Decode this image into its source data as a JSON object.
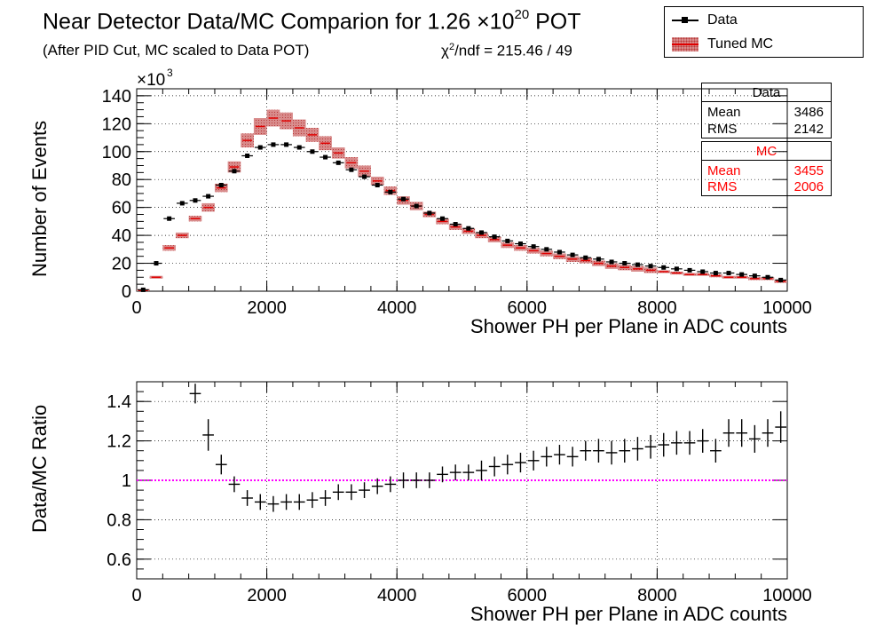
{
  "title": {
    "main": "Near Detector Data/MC Comparion for 1.26 ×10",
    "exponent": "20",
    "suffix": " POT",
    "subtitle": "(After PID Cut, MC scaled to Data POT)",
    "chi2_symbol": "χ",
    "chi2_exp": "2",
    "chi2_text": "/ndf = 215.46 / 49"
  },
  "legend": {
    "entries": [
      {
        "label": "Data",
        "color": "#000000"
      },
      {
        "label": "Tuned MC",
        "color": "#d88b8b"
      }
    ]
  },
  "stats": {
    "data": {
      "header": "Data",
      "mean_label": "Mean",
      "mean": "3486",
      "rms_label": "RMS",
      "rms": "2142"
    },
    "mc": {
      "header": "MC",
      "mean_label": "Mean",
      "mean": "3455",
      "rms_label": "RMS",
      "rms": "2006",
      "color": "#ff0000"
    }
  },
  "colors": {
    "mc_fill": "#d88b8b",
    "mc_hatch": "#b83a3a",
    "mc_line": "#e00000",
    "unity_line": "#ff00ff",
    "data": "#000000"
  },
  "chart_data": [
    {
      "type": "bar",
      "title": "Near Detector Data/MC Comparion for 1.26 ×10^20 POT",
      "xlabel": "Shower PH per Plane in ADC counts",
      "ylabel": "Number of Events",
      "y_multiplier": "×10",
      "y_multiplier_exp": "3",
      "xlim": [
        0,
        10000
      ],
      "ylim": [
        0,
        145
      ],
      "xticks": [
        0,
        2000,
        4000,
        6000,
        8000,
        10000
      ],
      "yticks": [
        0,
        20,
        40,
        60,
        80,
        100,
        120,
        140
      ],
      "grid": true,
      "legend_position": "top-right",
      "bin_width": 200,
      "x": [
        100,
        300,
        500,
        700,
        900,
        1100,
        1300,
        1500,
        1700,
        1900,
        2100,
        2300,
        2500,
        2700,
        2900,
        3100,
        3300,
        3500,
        3700,
        3900,
        4100,
        4300,
        4500,
        4700,
        4900,
        5100,
        5300,
        5500,
        5700,
        5900,
        6100,
        6300,
        6500,
        6700,
        6900,
        7100,
        7300,
        7500,
        7700,
        7900,
        8100,
        8300,
        8500,
        8700,
        8900,
        9100,
        9300,
        9500,
        9700,
        9900
      ],
      "series": [
        {
          "name": "Data",
          "values": [
            1,
            20,
            52,
            63,
            65,
            68,
            76,
            86,
            97,
            103,
            105,
            105,
            103,
            100,
            96,
            92,
            87,
            82,
            76,
            71,
            66,
            61,
            56,
            52,
            48,
            45,
            42,
            39,
            36,
            34,
            32,
            30,
            28,
            26,
            24,
            23,
            21,
            20,
            19,
            18,
            17,
            16,
            15,
            14,
            13,
            13,
            12,
            11,
            10,
            8
          ]
        },
        {
          "name": "Tuned MC",
          "values": [
            0.5,
            10,
            31,
            40,
            52,
            60,
            74,
            89,
            108,
            118,
            124,
            122,
            117,
            112,
            106,
            99,
            92,
            86,
            79,
            72,
            65,
            61,
            55,
            50,
            46,
            43,
            40,
            37,
            33,
            31,
            29,
            27,
            25,
            23,
            22,
            20,
            18,
            17,
            16,
            15,
            14,
            13,
            12,
            12,
            11,
            10,
            10,
            9,
            9,
            7
          ],
          "error_band": [
            1,
            1,
            2,
            2,
            2,
            3,
            3,
            4,
            5,
            6,
            6,
            6,
            6,
            5,
            5,
            4,
            4,
            4,
            3,
            3,
            3,
            3,
            2,
            2,
            2,
            2,
            2,
            2,
            2,
            2,
            2,
            2,
            2,
            2,
            2,
            2,
            2,
            2,
            2,
            2,
            1,
            1,
            1,
            1,
            1,
            1,
            1,
            1,
            1,
            1
          ]
        }
      ]
    },
    {
      "type": "scatter",
      "xlabel": "Shower PH per Plane in ADC counts",
      "ylabel": "Data/MC Ratio",
      "xlim": [
        0,
        10000
      ],
      "ylim": [
        0.5,
        1.5
      ],
      "xticks": [
        0,
        2000,
        4000,
        6000,
        8000,
        10000
      ],
      "yticks": [
        0.6,
        0.8,
        1,
        1.2,
        1.4
      ],
      "grid": true,
      "reference_line": 1,
      "bin_width": 200,
      "x": [
        900,
        1100,
        1300,
        1500,
        1700,
        1900,
        2100,
        2300,
        2500,
        2700,
        2900,
        3100,
        3300,
        3500,
        3700,
        3900,
        4100,
        4300,
        4500,
        4700,
        4900,
        5100,
        5300,
        5500,
        5700,
        5900,
        6100,
        6300,
        6500,
        6700,
        6900,
        7100,
        7300,
        7500,
        7700,
        7900,
        8100,
        8300,
        8500,
        8700,
        8900,
        9100,
        9300,
        9500,
        9700,
        9900
      ],
      "values": [
        1.44,
        1.23,
        1.08,
        0.98,
        0.91,
        0.89,
        0.88,
        0.89,
        0.89,
        0.9,
        0.91,
        0.94,
        0.94,
        0.95,
        0.97,
        0.98,
        1.0,
        1.0,
        1.0,
        1.03,
        1.04,
        1.04,
        1.05,
        1.07,
        1.08,
        1.09,
        1.1,
        1.12,
        1.13,
        1.12,
        1.15,
        1.15,
        1.14,
        1.15,
        1.16,
        1.17,
        1.18,
        1.19,
        1.19,
        1.2,
        1.15,
        1.24,
        1.24,
        1.21,
        1.24,
        1.27
      ],
      "errors": [
        0.05,
        0.08,
        0.05,
        0.04,
        0.04,
        0.04,
        0.04,
        0.04,
        0.04,
        0.04,
        0.04,
        0.04,
        0.04,
        0.04,
        0.04,
        0.04,
        0.04,
        0.04,
        0.04,
        0.04,
        0.04,
        0.04,
        0.05,
        0.05,
        0.05,
        0.05,
        0.05,
        0.05,
        0.05,
        0.05,
        0.05,
        0.06,
        0.06,
        0.06,
        0.06,
        0.06,
        0.06,
        0.06,
        0.06,
        0.06,
        0.06,
        0.07,
        0.07,
        0.07,
        0.07,
        0.08
      ]
    }
  ]
}
